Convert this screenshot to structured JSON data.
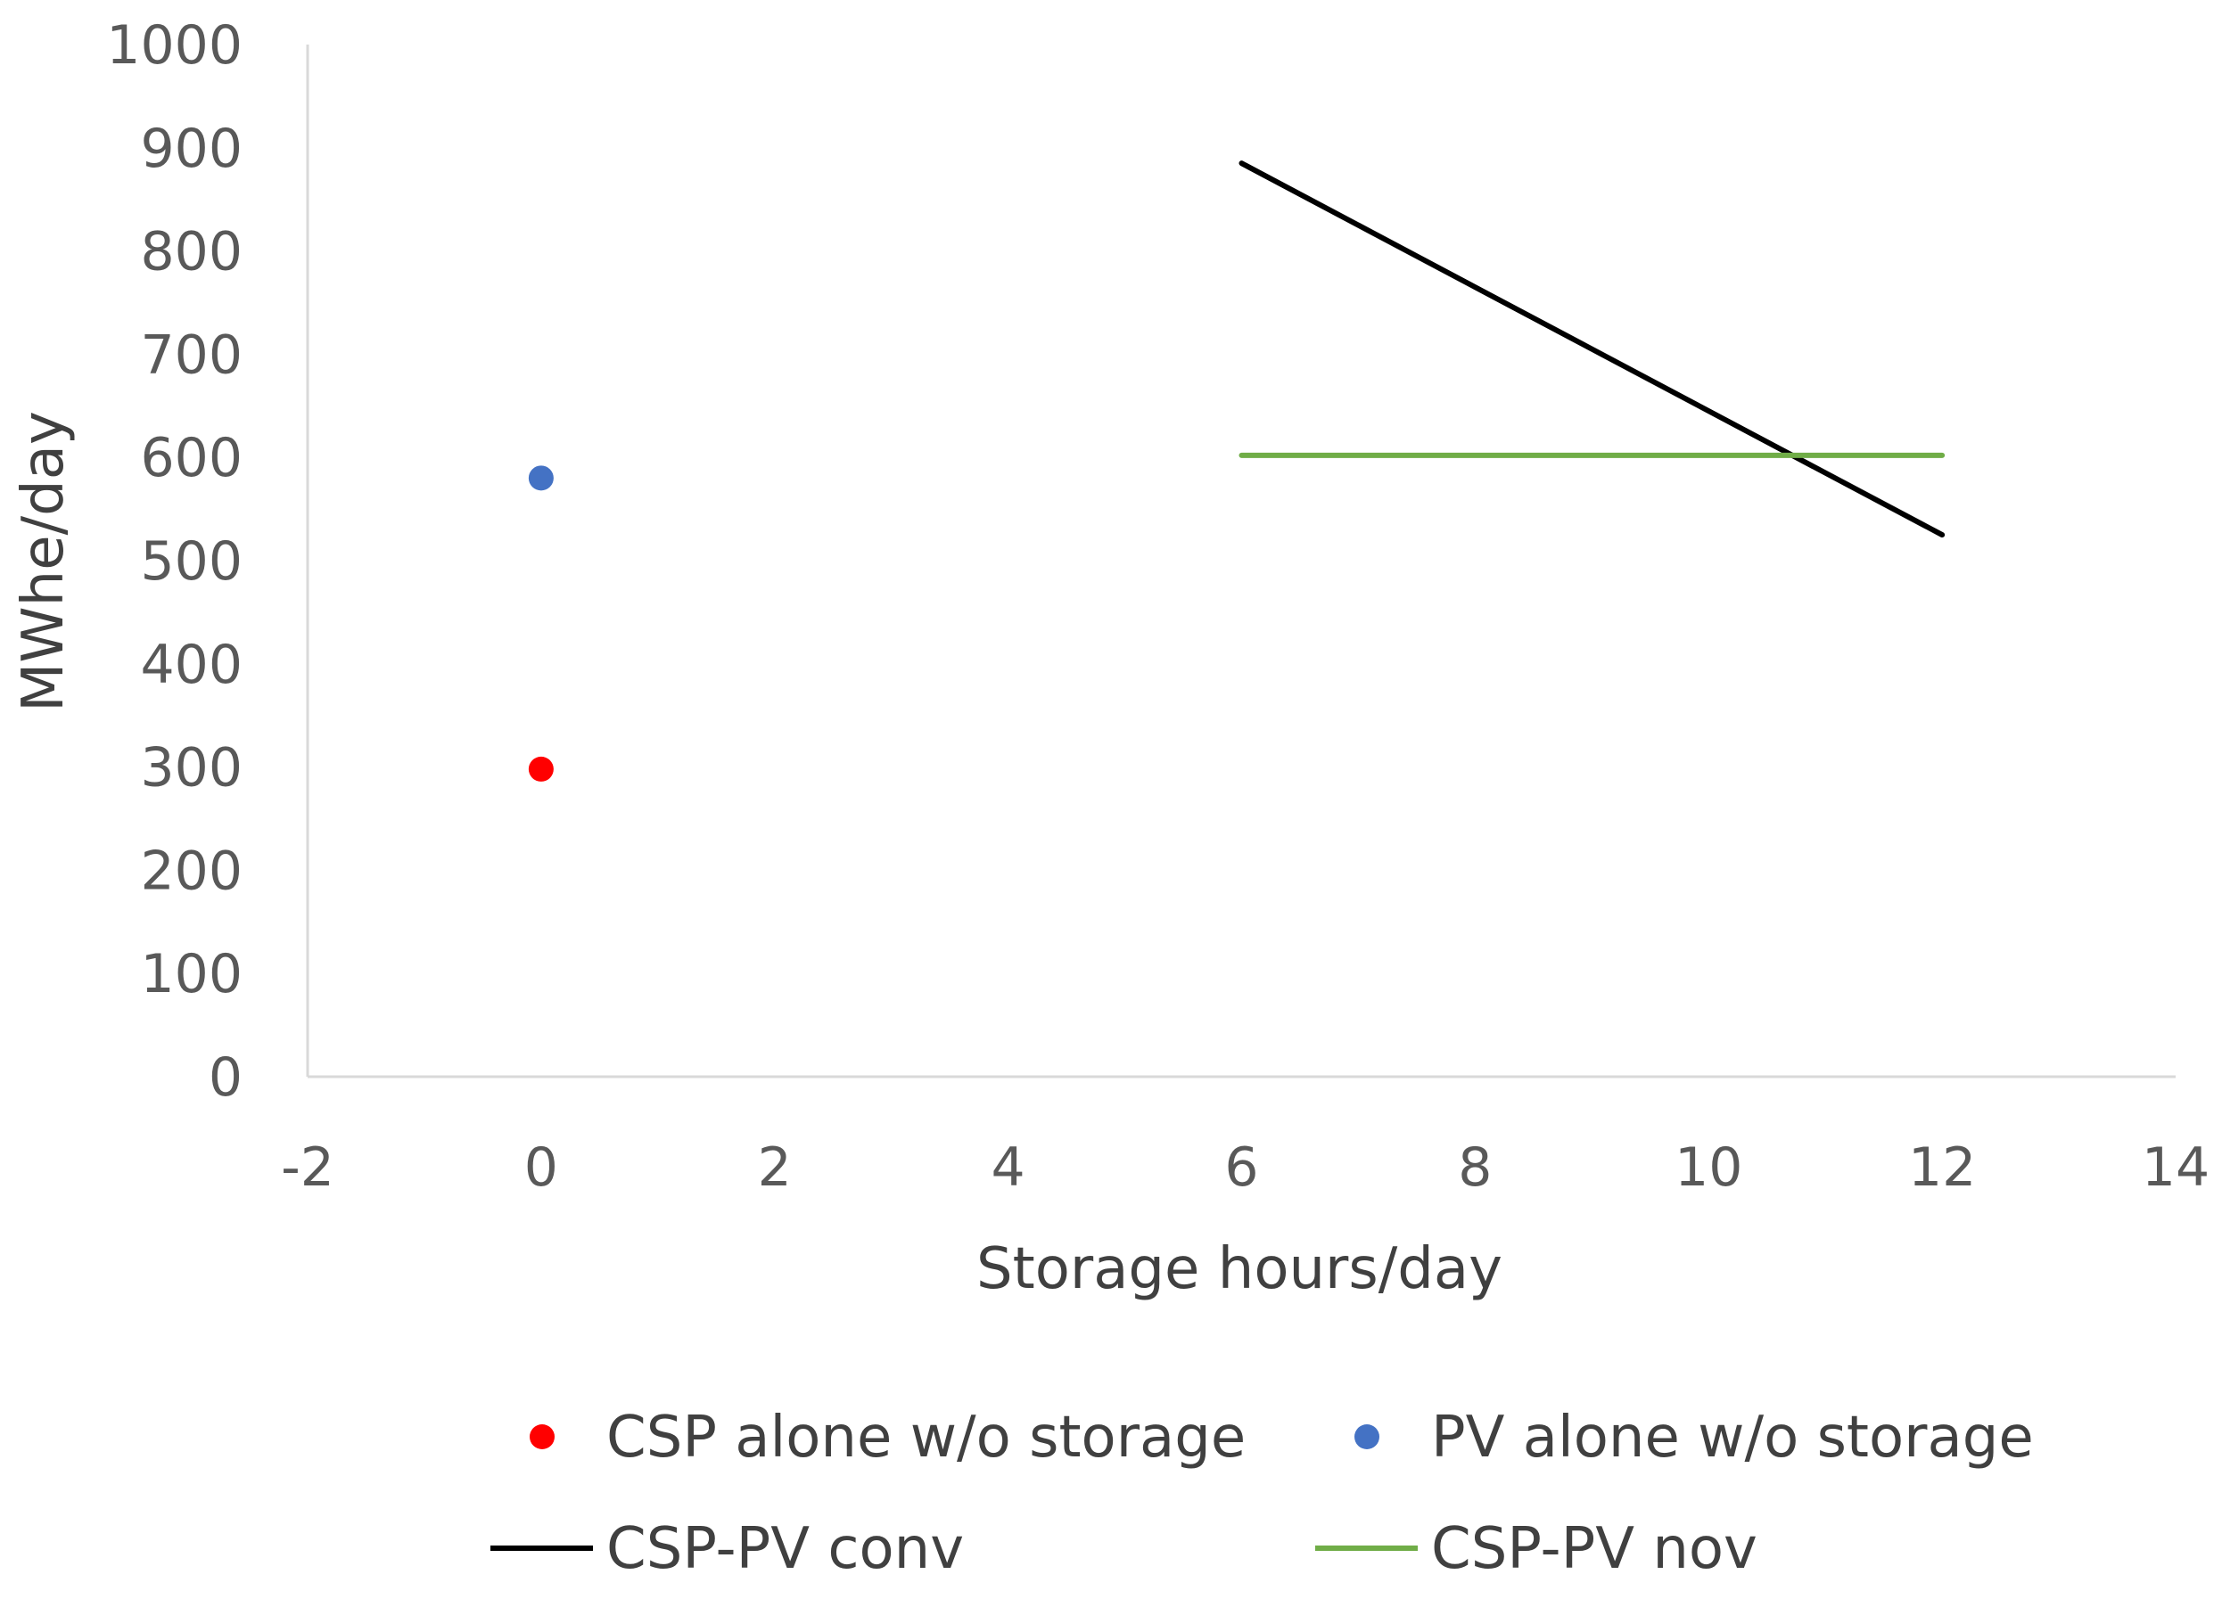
{
  "chart_data": {
    "type": "scatter",
    "xlabel": "Storage hours/day",
    "ylabel": "MWhe/day",
    "xlim": [
      -2,
      14
    ],
    "ylim": [
      0,
      1000
    ],
    "xticks": [
      -2,
      0,
      2,
      4,
      6,
      8,
      10,
      12,
      14
    ],
    "yticks": [
      0,
      100,
      200,
      300,
      400,
      500,
      600,
      700,
      800,
      900,
      1000
    ],
    "grid": false,
    "legend_position": "bottom",
    "series": [
      {
        "name": "CSP alone w/o storage",
        "kind": "point",
        "color": "#ff0000",
        "x": [
          0
        ],
        "y": [
          298
        ]
      },
      {
        "name": "PV alone w/o storage",
        "kind": "point",
        "color": "#4472c4",
        "x": [
          0
        ],
        "y": [
          580
        ]
      },
      {
        "name": "CSP-PV conv",
        "kind": "line",
        "color": "#000000",
        "x": [
          6,
          12
        ],
        "y": [
          885,
          525
        ]
      },
      {
        "name": "CSP-PV nov",
        "kind": "line",
        "color": "#70ad47",
        "x": [
          6,
          12
        ],
        "y": [
          602,
          602
        ]
      }
    ]
  }
}
